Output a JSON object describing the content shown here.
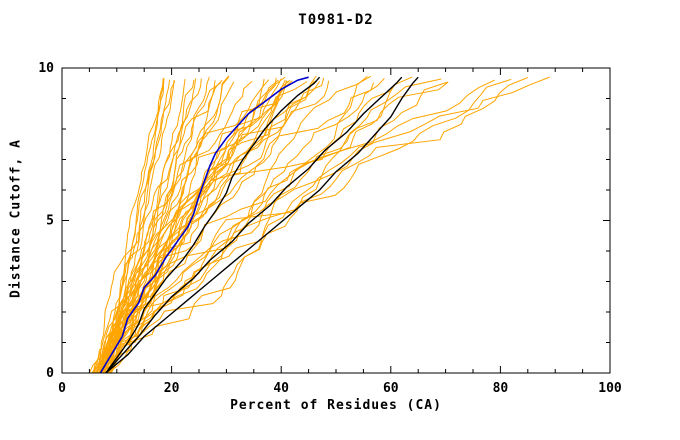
{
  "chart_data": {
    "type": "line",
    "title": "T0981-D2",
    "xlabel": "Percent of Residues (CA)",
    "ylabel": "Distance Cutoff, A",
    "xlim": [
      0,
      100
    ],
    "ylim": [
      0,
      10
    ],
    "xticks": [
      0,
      20,
      40,
      60,
      80,
      100
    ],
    "yticks": [
      0,
      5,
      10
    ],
    "x_minor_step": 5,
    "y_minor_step": 1,
    "grid": false,
    "legend": "none",
    "axis_color": "#000000",
    "background": "#ffffff",
    "ensemble": {
      "name": "server-model-curves",
      "color": "#FFA500",
      "count": 48,
      "seed": 20181,
      "x_start_range": [
        5,
        9
      ],
      "x_end_range": [
        16,
        89
      ],
      "y_end": 9.7
    },
    "series": [
      {
        "name": "black-line-1",
        "color": "#000000",
        "points": [
          [
            8,
            0
          ],
          [
            10,
            0.5
          ],
          [
            12,
            1
          ],
          [
            14,
            1.6
          ],
          [
            15,
            2.1
          ],
          [
            17,
            2.6
          ],
          [
            19,
            3.1
          ],
          [
            22,
            3.7
          ],
          [
            24,
            4.2
          ],
          [
            26,
            4.8
          ],
          [
            28,
            5.3
          ],
          [
            30,
            5.9
          ],
          [
            31,
            6.4
          ],
          [
            33,
            7
          ],
          [
            35,
            7.5
          ],
          [
            37,
            8
          ],
          [
            40,
            8.6
          ],
          [
            43,
            9.1
          ],
          [
            46,
            9.5
          ],
          [
            47,
            9.7
          ]
        ]
      },
      {
        "name": "black-line-2",
        "color": "#000000",
        "points": [
          [
            8,
            0
          ],
          [
            11,
            0.6
          ],
          [
            14,
            1.2
          ],
          [
            17,
            1.9
          ],
          [
            20,
            2.5
          ],
          [
            24,
            3.1
          ],
          [
            27,
            3.7
          ],
          [
            31,
            4.3
          ],
          [
            34,
            4.9
          ],
          [
            38,
            5.5
          ],
          [
            41,
            6.1
          ],
          [
            45,
            6.7
          ],
          [
            48,
            7.3
          ],
          [
            52,
            7.9
          ],
          [
            55,
            8.5
          ],
          [
            58,
            9
          ],
          [
            61,
            9.5
          ],
          [
            62,
            9.7
          ]
        ]
      },
      {
        "name": "black-line-3",
        "color": "#000000",
        "points": [
          [
            8,
            0
          ],
          [
            12,
            0.6
          ],
          [
            15,
            1.2
          ],
          [
            19,
            1.8
          ],
          [
            23,
            2.4
          ],
          [
            27,
            3
          ],
          [
            31,
            3.6
          ],
          [
            35,
            4.2
          ],
          [
            39,
            4.8
          ],
          [
            43,
            5.4
          ],
          [
            47,
            6
          ],
          [
            50,
            6.6
          ],
          [
            54,
            7.2
          ],
          [
            57,
            7.8
          ],
          [
            60,
            8.4
          ],
          [
            62,
            9
          ],
          [
            64,
            9.5
          ],
          [
            65,
            9.7
          ]
        ]
      },
      {
        "name": "blue-line",
        "color": "#0000CC",
        "points": [
          [
            7,
            0
          ],
          [
            9,
            0.6
          ],
          [
            11,
            1.2
          ],
          [
            12,
            1.8
          ],
          [
            14,
            2.3
          ],
          [
            15,
            2.8
          ],
          [
            17,
            3.2
          ],
          [
            19,
            3.8
          ],
          [
            21,
            4.3
          ],
          [
            23,
            4.8
          ],
          [
            24,
            5.2
          ],
          [
            25,
            5.8
          ],
          [
            26,
            6.3
          ],
          [
            27,
            6.8
          ],
          [
            28,
            7.2
          ],
          [
            30,
            7.7
          ],
          [
            32,
            8.1
          ],
          [
            34,
            8.5
          ],
          [
            37,
            8.9
          ],
          [
            40,
            9.3
          ],
          [
            43,
            9.6
          ],
          [
            45,
            9.7
          ]
        ]
      }
    ]
  }
}
